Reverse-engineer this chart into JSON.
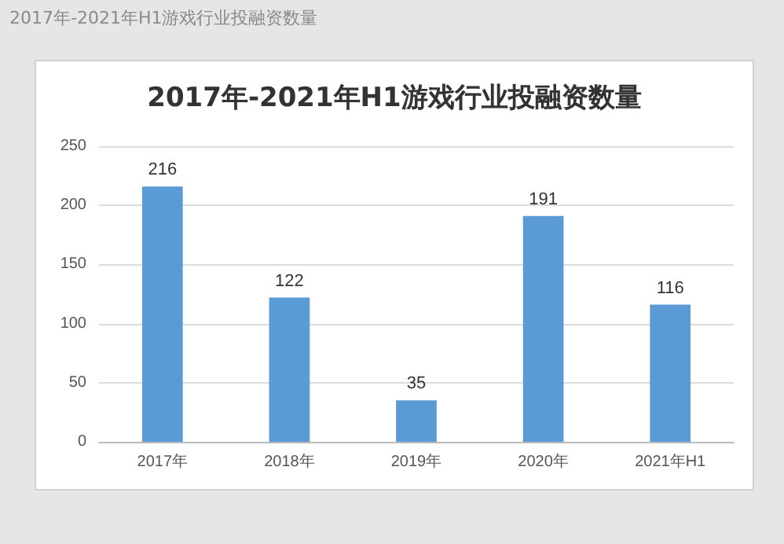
{
  "chart_data": {
    "type": "bar",
    "subtitle": "2017年-2021年H1游戏行业投融资数量",
    "title": "2017年-2021年H1游戏行业投融资数量",
    "categories": [
      "2017年",
      "2018年",
      "2019年",
      "2020年",
      "2021年H1"
    ],
    "values": [
      216,
      122,
      35,
      191,
      116
    ],
    "color": "#5b9bd5",
    "ylim": [
      0,
      250
    ],
    "yticks": [
      0,
      50,
      100,
      150,
      200,
      250
    ],
    "grid": "y",
    "data_labels": true
  }
}
